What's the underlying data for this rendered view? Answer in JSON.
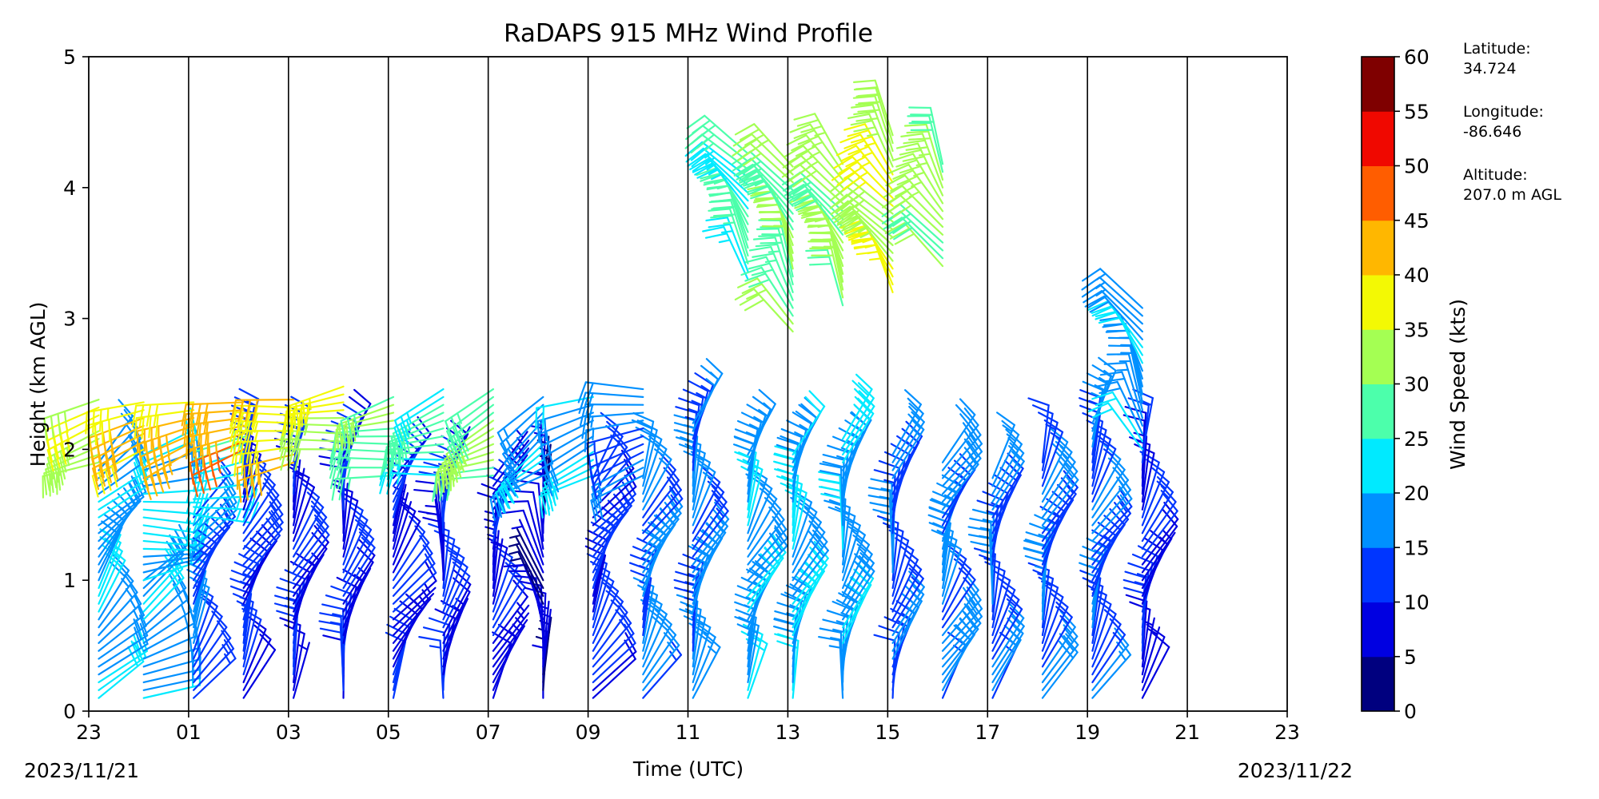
{
  "chart_data": {
    "type": "barbs",
    "title": "RaDAPS 915 MHz Wind Profile",
    "xlabel": "Time (UTC)",
    "ylabel": "Height (km AGL)",
    "ylim": [
      0,
      5
    ],
    "yticks": [
      "0",
      "1",
      "2",
      "3",
      "4",
      "5"
    ],
    "xticks": [
      "23",
      "01",
      "03",
      "05",
      "07",
      "09",
      "11",
      "13",
      "15",
      "17",
      "19",
      "21",
      "23"
    ],
    "start_date": "2023/11/21",
    "end_date": "2023/11/22",
    "grid": "vertical lines every 2 hours",
    "colorbar": {
      "label": "Wind Speed (kts)",
      "ticks": [
        "0",
        "5",
        "10",
        "15",
        "20",
        "25",
        "30",
        "35",
        "40",
        "45",
        "50",
        "55",
        "60"
      ],
      "colors": [
        "#00007f",
        "#0000e1",
        "#0036ff",
        "#0090ff",
        "#00eaff",
        "#4cffab",
        "#a4ff53",
        "#f3f904",
        "#ffb700",
        "#ff5d00",
        "#f00800",
        "#7f0000"
      ]
    },
    "profiles": [
      {
        "time": 0.2,
        "layers": [
          [
            0.1,
            1.9,
            18,
            40
          ],
          [
            1.9,
            2.4,
            33,
            260
          ]
        ]
      },
      {
        "time": 1.1,
        "layers": [
          [
            0.1,
            1.0,
            18,
            60
          ],
          [
            1.0,
            2.0,
            22,
            80
          ],
          [
            2.0,
            2.4,
            38,
            260
          ]
        ]
      },
      {
        "time": 2.1,
        "layers": [
          [
            0.1,
            1.5,
            14,
            30
          ],
          [
            1.5,
            2.0,
            24,
            90
          ],
          [
            2.0,
            2.4,
            42,
            255
          ]
        ]
      },
      {
        "time": 3.1,
        "layers": [
          [
            0.1,
            2.0,
            12,
            25
          ],
          [
            2.0,
            2.4,
            44,
            250
          ]
        ]
      },
      {
        "time": 4.1,
        "layers": [
          [
            0.1,
            1.9,
            10,
            20
          ],
          [
            1.9,
            2.4,
            40,
            255
          ]
        ]
      },
      {
        "time": 5.1,
        "layers": [
          [
            0.1,
            2.0,
            10,
            15
          ],
          [
            2.0,
            2.5,
            34,
            255
          ]
        ]
      },
      {
        "time": 6.1,
        "layers": [
          [
            0.1,
            1.8,
            9,
            30
          ],
          [
            1.8,
            2.4,
            28,
            255
          ]
        ]
      },
      {
        "time": 7.1,
        "layers": [
          [
            0.1,
            1.8,
            10,
            10
          ],
          [
            1.8,
            2.5,
            26,
            255
          ]
        ]
      },
      {
        "time": 8.1,
        "layers": [
          [
            0.1,
            1.8,
            8,
            20
          ],
          [
            1.8,
            2.5,
            30,
            250
          ]
        ]
      },
      {
        "time": 9.1,
        "layers": [
          [
            0.1,
            1.8,
            7,
            350
          ],
          [
            1.8,
            2.4,
            18,
            240
          ]
        ]
      },
      {
        "time": 10.1,
        "layers": [
          [
            0.1,
            1.8,
            12,
            30
          ],
          [
            1.8,
            2.4,
            20,
            255
          ]
        ]
      },
      {
        "time": 11.1,
        "layers": [
          [
            0.1,
            1.8,
            16,
            25
          ],
          [
            1.8,
            2.5,
            16,
            260
          ]
        ]
      },
      {
        "time": 12.1,
        "layers": [
          [
            0.1,
            2.2,
            16,
            20
          ]
        ]
      },
      {
        "time": 13.2,
        "layers": [
          [
            0.1,
            2.0,
            18,
            25
          ],
          [
            3.3,
            4.3,
            26,
            325
          ]
        ]
      },
      {
        "time": 14.1,
        "layers": [
          [
            0.1,
            2.0,
            20,
            20
          ],
          [
            2.9,
            4.2,
            30,
            330
          ]
        ]
      },
      {
        "time": 15.1,
        "layers": [
          [
            0.1,
            2.1,
            18,
            15
          ],
          [
            3.1,
            4.2,
            32,
            330
          ]
        ]
      },
      {
        "time": 16.1,
        "layers": [
          [
            0.1,
            2.0,
            14,
            15
          ],
          [
            3.2,
            4.4,
            34,
            325
          ]
        ]
      },
      {
        "time": 17.1,
        "layers": [
          [
            0.1,
            1.9,
            17,
            25
          ],
          [
            3.4,
            4.2,
            32,
            330
          ]
        ]
      },
      {
        "time": 18.1,
        "layers": [
          [
            0.1,
            1.8,
            14,
            15
          ]
        ]
      },
      {
        "time": 19.1,
        "layers": [
          [
            0.1,
            1.9,
            15,
            20
          ]
        ]
      },
      {
        "time": 20.1,
        "layers": [
          [
            0.1,
            2.2,
            14,
            25
          ]
        ]
      },
      {
        "time": 21.1,
        "layers": [
          [
            0.1,
            2.0,
            10,
            20
          ],
          [
            2.0,
            3.1,
            18,
            330
          ]
        ]
      }
    ],
    "extra_points": []
  },
  "side_info": {
    "latitude_label": "Latitude:",
    "latitude_value": "34.724",
    "longitude_label": "Longitude:",
    "longitude_value": "-86.646",
    "altitude_label": "Altitude:",
    "altitude_value": "207.0 m AGL"
  }
}
